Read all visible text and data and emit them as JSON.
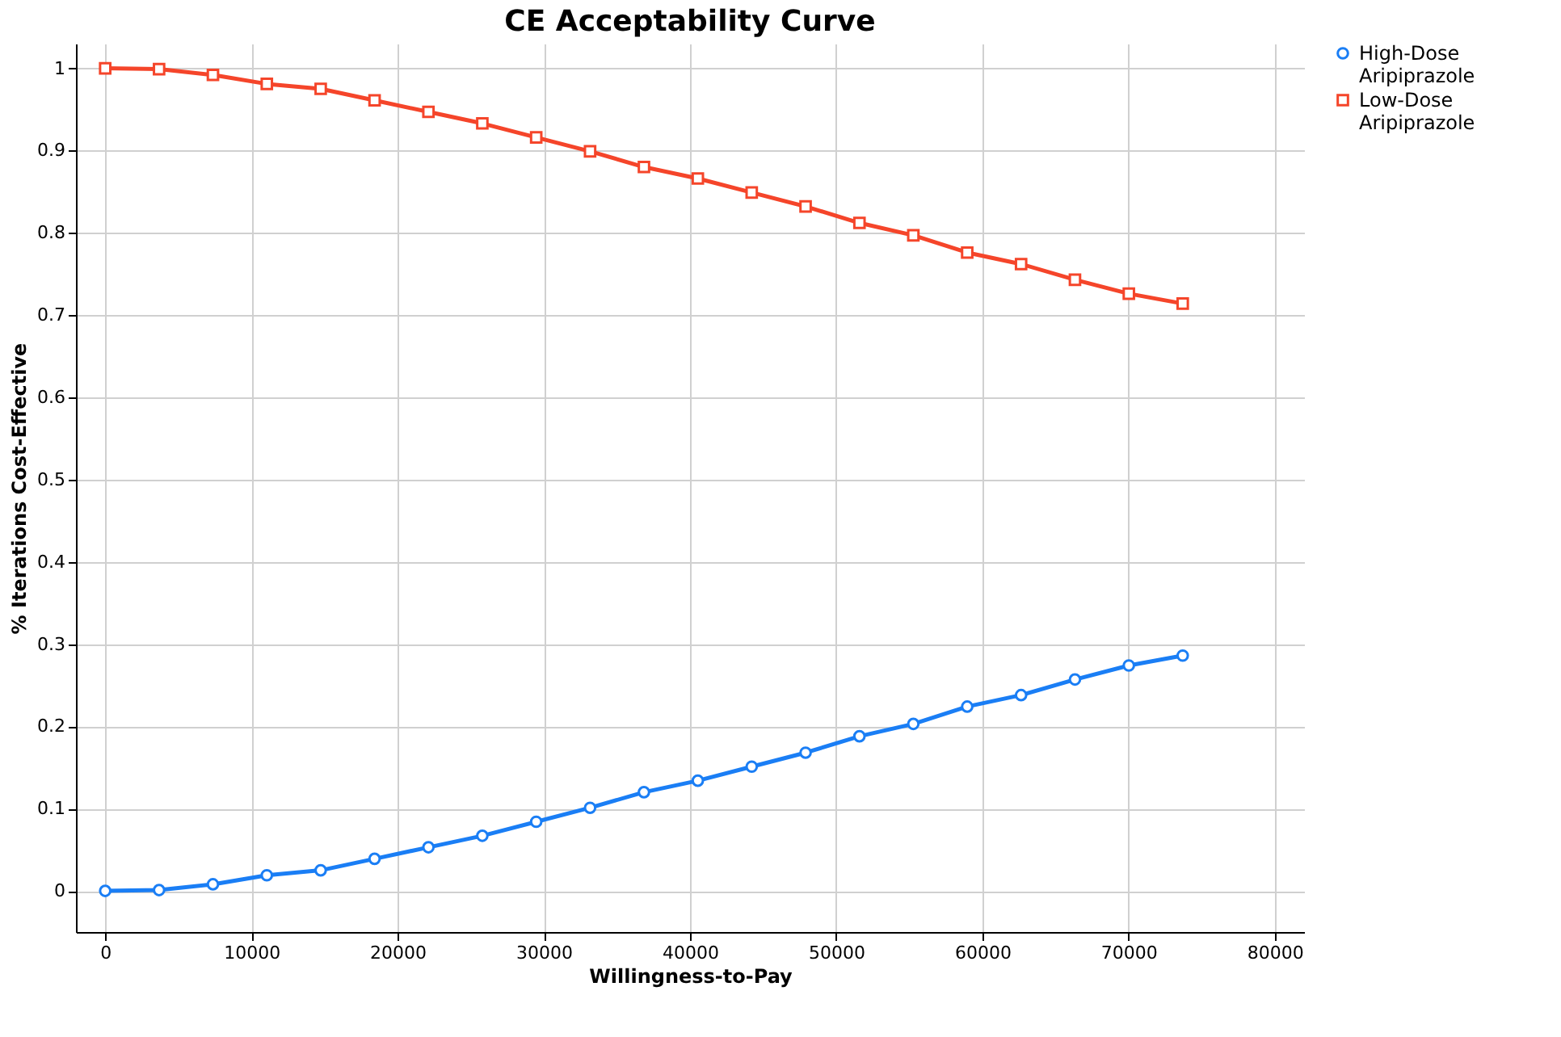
{
  "chart_data": {
    "type": "line",
    "title": "CE Acceptability Curve",
    "xlabel": "Willingness-to-Pay",
    "ylabel": "% Iterations Cost-Effective",
    "x": [
      0,
      3685,
      7370,
      11055,
      14740,
      18425,
      22110,
      25795,
      29480,
      33165,
      36850,
      40535,
      44220,
      47905,
      51590,
      55275,
      58960,
      62645,
      66330,
      70015,
      73700
    ],
    "series": [
      {
        "name": "High-Dose Aripiprazole",
        "color": "#1a7ef5",
        "marker": "circle",
        "values": [
          0,
          0.001,
          0.008,
          0.019,
          0.025,
          0.039,
          0.053,
          0.067,
          0.084,
          0.101,
          0.12,
          0.134,
          0.151,
          0.168,
          0.188,
          0.203,
          0.224,
          0.238,
          0.257,
          0.274,
          0.286
        ]
      },
      {
        "name": "Low-Dose Aripiprazole",
        "color": "#f5452a",
        "marker": "square",
        "values": [
          1,
          0.999,
          0.992,
          0.981,
          0.975,
          0.961,
          0.947,
          0.933,
          0.916,
          0.899,
          0.88,
          0.866,
          0.849,
          0.832,
          0.812,
          0.797,
          0.776,
          0.762,
          0.743,
          0.726,
          0.714
        ]
      }
    ],
    "xlim": [
      -2000,
      82000
    ],
    "xticks": [
      0,
      10000,
      20000,
      30000,
      40000,
      50000,
      60000,
      70000,
      80000
    ],
    "ylim": [
      -0.05,
      1.03
    ],
    "yticks": [
      0,
      0.1,
      0.2,
      0.3,
      0.4,
      0.5,
      0.6,
      0.7,
      0.8,
      0.9,
      1
    ],
    "grid": true,
    "legend": "top right",
    "line_style": "solid"
  }
}
